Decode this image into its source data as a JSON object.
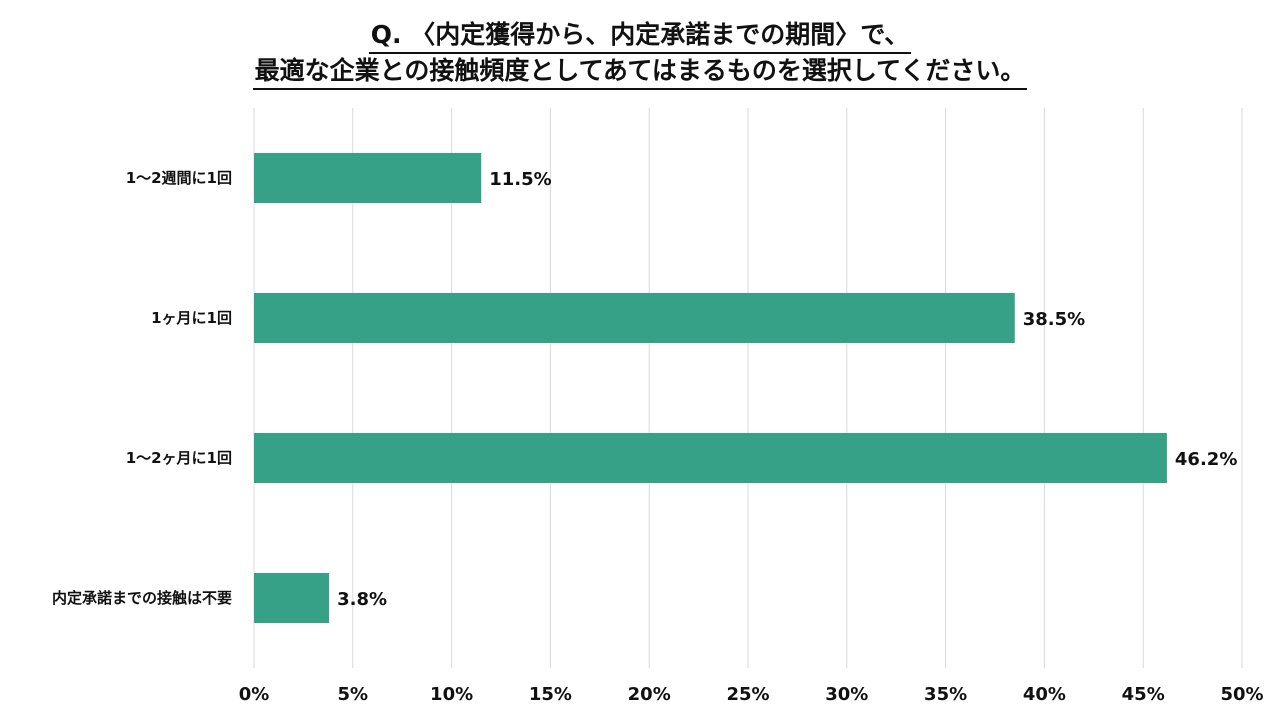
{
  "chart_data": {
    "type": "bar",
    "orientation": "horizontal",
    "title": [
      "Q. 〈内定獲得から、内定承諾までの期間〉で、",
      "最適な企業との接触頻度としてあてはまるものを選択してください。"
    ],
    "categories": [
      "1～2週間に1回",
      "1ヶ月に1回",
      "1～2ヶ月に1回",
      "内定承諾までの接触は不要"
    ],
    "values": [
      11.5,
      38.5,
      46.2,
      3.8
    ],
    "value_labels": [
      "11.5%",
      "38.5%",
      "46.2%",
      "3.8%"
    ],
    "xlim": [
      0,
      50
    ],
    "xticks": [
      "0%",
      "5%",
      "10%",
      "15%",
      "20%",
      "25%",
      "30%",
      "35%",
      "40%",
      "45%",
      "50%"
    ],
    "bar_color": "#36a187",
    "grid": true
  }
}
